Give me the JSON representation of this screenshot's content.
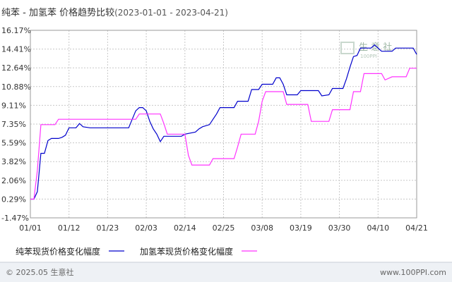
{
  "chart_data": {
    "type": "line",
    "title": "纯苯 - 加氢苯 价格趋势比较",
    "subtitle": "(2023-01-01 - 2023-04-21)",
    "x_range": [
      "2023-01-01",
      "2023-04-21"
    ],
    "x_ticks": [
      {
        "label": "01/01",
        "date": "2023-01-01"
      },
      {
        "label": "01/12",
        "date": "2023-01-12"
      },
      {
        "label": "01/23",
        "date": "2023-01-23"
      },
      {
        "label": "02/03",
        "date": "2023-02-03"
      },
      {
        "label": "02/14",
        "date": "2023-02-14"
      },
      {
        "label": "02/25",
        "date": "2023-02-25"
      },
      {
        "label": "03/08",
        "date": "2023-03-08"
      },
      {
        "label": "03/19",
        "date": "2023-03-19"
      },
      {
        "label": "03/30",
        "date": "2023-03-30"
      },
      {
        "label": "04/10",
        "date": "2023-04-10"
      },
      {
        "label": "04/21",
        "date": "2023-04-21"
      }
    ],
    "y_ticks": [
      "16.17%",
      "14.41%",
      "12.64%",
      "10.88%",
      "9.11%",
      "7.35%",
      "5.59%",
      "3.82%",
      "2.06%",
      "0.29%",
      "-1.47%"
    ],
    "ylim": [
      -1.47,
      16.17
    ],
    "grid": true,
    "legend_position": "bottom",
    "series": [
      {
        "name": "纯苯现货价格变化幅度",
        "color": "#0000cc",
        "points": [
          [
            "2023-01-01",
            0.29
          ],
          [
            "2023-01-02",
            0.29
          ],
          [
            "2023-01-03",
            1.0
          ],
          [
            "2023-01-04",
            4.6
          ],
          [
            "2023-01-05",
            4.6
          ],
          [
            "2023-01-06",
            5.8
          ],
          [
            "2023-01-07",
            6.0
          ],
          [
            "2023-01-09",
            6.0
          ],
          [
            "2023-01-10",
            6.1
          ],
          [
            "2023-01-11",
            6.3
          ],
          [
            "2023-01-12",
            7.0
          ],
          [
            "2023-01-14",
            7.0
          ],
          [
            "2023-01-15",
            7.4
          ],
          [
            "2023-01-16",
            7.1
          ],
          [
            "2023-01-18",
            7.0
          ],
          [
            "2023-01-29",
            7.0
          ],
          [
            "2023-01-30",
            7.8
          ],
          [
            "2023-01-31",
            8.6
          ],
          [
            "2023-02-01",
            8.9
          ],
          [
            "2023-02-02",
            8.9
          ],
          [
            "2023-02-03",
            8.6
          ],
          [
            "2023-02-04",
            7.6
          ],
          [
            "2023-02-05",
            6.9
          ],
          [
            "2023-02-06",
            6.4
          ],
          [
            "2023-02-07",
            5.7
          ],
          [
            "2023-02-08",
            6.2
          ],
          [
            "2023-02-13",
            6.2
          ],
          [
            "2023-02-14",
            6.4
          ],
          [
            "2023-02-17",
            6.6
          ],
          [
            "2023-02-18",
            6.9
          ],
          [
            "2023-02-19",
            7.1
          ],
          [
            "2023-02-21",
            7.3
          ],
          [
            "2023-02-22",
            7.8
          ],
          [
            "2023-02-23",
            8.3
          ],
          [
            "2023-02-24",
            8.9
          ],
          [
            "2023-02-28",
            8.9
          ],
          [
            "2023-03-01",
            9.5
          ],
          [
            "2023-03-04",
            9.5
          ],
          [
            "2023-03-05",
            10.6
          ],
          [
            "2023-03-07",
            10.6
          ],
          [
            "2023-03-08",
            11.1
          ],
          [
            "2023-03-11",
            11.1
          ],
          [
            "2023-03-12",
            11.7
          ],
          [
            "2023-03-13",
            11.7
          ],
          [
            "2023-03-14",
            11.1
          ],
          [
            "2023-03-15",
            10.1
          ],
          [
            "2023-03-18",
            10.1
          ],
          [
            "2023-03-19",
            10.5
          ],
          [
            "2023-03-24",
            10.5
          ],
          [
            "2023-03-25",
            10.0
          ],
          [
            "2023-03-27",
            10.1
          ],
          [
            "2023-03-28",
            10.7
          ],
          [
            "2023-03-31",
            10.7
          ],
          [
            "2023-04-01",
            11.6
          ],
          [
            "2023-04-02",
            12.7
          ],
          [
            "2023-04-03",
            13.7
          ],
          [
            "2023-04-04",
            13.8
          ],
          [
            "2023-04-05",
            14.5
          ],
          [
            "2023-04-08",
            14.5
          ],
          [
            "2023-04-09",
            14.8
          ],
          [
            "2023-04-10",
            14.5
          ],
          [
            "2023-04-11",
            14.2
          ],
          [
            "2023-04-14",
            14.2
          ],
          [
            "2023-04-15",
            14.5
          ],
          [
            "2023-04-20",
            14.5
          ],
          [
            "2023-04-21",
            13.9
          ]
        ]
      },
      {
        "name": "加氢苯现货价格变化幅度",
        "color": "#ff33ff",
        "points": [
          [
            "2023-01-01",
            0.29
          ],
          [
            "2023-01-02",
            0.29
          ],
          [
            "2023-01-03",
            3.0
          ],
          [
            "2023-01-04",
            7.3
          ],
          [
            "2023-01-08",
            7.3
          ],
          [
            "2023-01-09",
            7.8
          ],
          [
            "2023-01-31",
            7.8
          ],
          [
            "2023-02-01",
            8.3
          ],
          [
            "2023-02-07",
            8.3
          ],
          [
            "2023-02-08",
            7.4
          ],
          [
            "2023-02-09",
            6.4
          ],
          [
            "2023-02-14",
            6.4
          ],
          [
            "2023-02-15",
            4.4
          ],
          [
            "2023-02-16",
            3.5
          ],
          [
            "2023-02-21",
            3.5
          ],
          [
            "2023-02-22",
            4.1
          ],
          [
            "2023-02-28",
            4.1
          ],
          [
            "2023-03-01",
            5.2
          ],
          [
            "2023-03-02",
            6.4
          ],
          [
            "2023-03-06",
            6.4
          ],
          [
            "2023-03-07",
            7.6
          ],
          [
            "2023-03-08",
            9.5
          ],
          [
            "2023-03-09",
            10.4
          ],
          [
            "2023-03-14",
            10.4
          ],
          [
            "2023-03-15",
            9.2
          ],
          [
            "2023-03-21",
            9.2
          ],
          [
            "2023-03-22",
            7.6
          ],
          [
            "2023-03-27",
            7.6
          ],
          [
            "2023-03-28",
            8.7
          ],
          [
            "2023-04-02",
            8.7
          ],
          [
            "2023-04-03",
            10.4
          ],
          [
            "2023-04-05",
            10.4
          ],
          [
            "2023-04-06",
            12.1
          ],
          [
            "2023-04-11",
            12.1
          ],
          [
            "2023-04-12",
            11.5
          ],
          [
            "2023-04-14",
            11.8
          ],
          [
            "2023-04-18",
            11.8
          ],
          [
            "2023-04-19",
            12.6
          ],
          [
            "2023-04-21",
            12.6
          ]
        ]
      }
    ]
  },
  "watermark": {
    "text": "生 意 社",
    "sub": "100PPI"
  },
  "footer": {
    "left": "© 2025.05 生意社",
    "right": "www.100PPI.com"
  }
}
